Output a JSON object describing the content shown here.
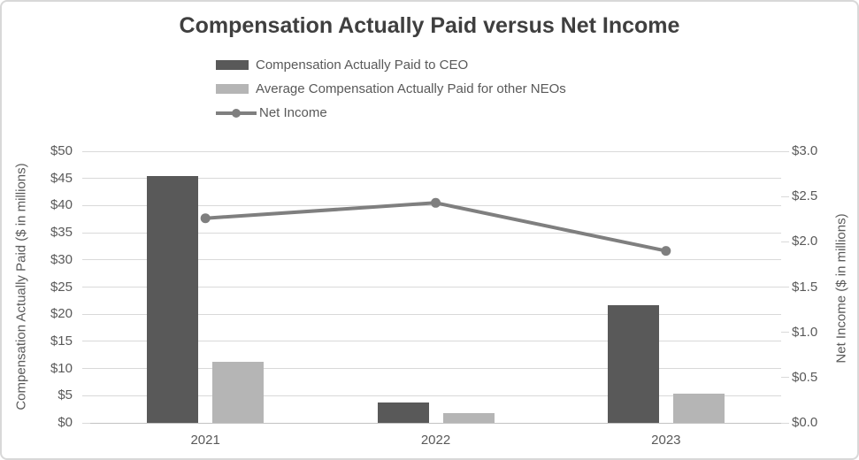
{
  "title": "Compensation Actually Paid versus Net Income",
  "legend": [
    {
      "label": "Compensation Actually Paid to CEO",
      "type": "bar",
      "color": "#595959"
    },
    {
      "label": "Average Compensation Actually Paid for other NEOs",
      "type": "bar",
      "color": "#b5b5b5"
    },
    {
      "label": "Net Income",
      "type": "line",
      "color": "#7f7f7f"
    }
  ],
  "chart_data": {
    "type": "bar",
    "subtype": "grouped-bars-with-line-on-secondary-axis",
    "title": "Compensation Actually Paid versus Net Income",
    "categories": [
      "2021",
      "2022",
      "2023"
    ],
    "series": [
      {
        "name": "Compensation Actually Paid to CEO",
        "type": "bar",
        "axis": "left",
        "color": "#595959",
        "values": [
          45.4,
          3.8,
          21.6
        ]
      },
      {
        "name": "Average Compensation Actually Paid for other NEOs",
        "type": "bar",
        "axis": "left",
        "color": "#b5b5b5",
        "values": [
          11.3,
          1.8,
          5.4
        ]
      },
      {
        "name": "Net Income",
        "type": "line",
        "axis": "right",
        "color": "#7f7f7f",
        "values": [
          2.26,
          2.43,
          1.9
        ]
      }
    ],
    "left_axis": {
      "title": "Compensation Actually Paid ($ in millions)",
      "min": 0,
      "max": 50,
      "step": 5,
      "tick_labels": [
        "$0",
        "$5",
        "$10",
        "$15",
        "$20",
        "$25",
        "$30",
        "$35",
        "$40",
        "$45",
        "$50"
      ]
    },
    "right_axis": {
      "title": "Net Income ($ in millions)",
      "min": 0,
      "max": 3.0,
      "step": 0.5,
      "tick_labels": [
        "$0.0",
        "$0.5",
        "$1.0",
        "$1.5",
        "$2.0",
        "$2.5",
        "$3.0"
      ]
    },
    "grid": true,
    "legend_position": "top-left-under-title",
    "colors": {
      "gridline": "#d9d9d9",
      "baseline": "#c3c3c3",
      "axis_text": "#595959",
      "title_text": "#3f3f3f",
      "background": "#ffffff"
    }
  }
}
